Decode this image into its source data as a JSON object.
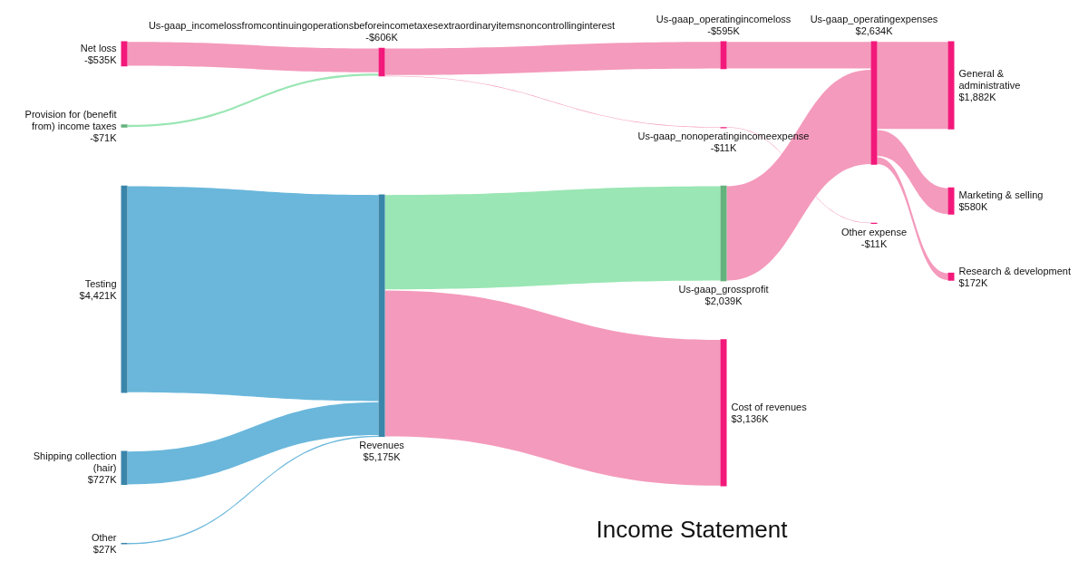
{
  "chart_data": {
    "type": "other",
    "title": "Income Statement",
    "categories": [
      "Net loss",
      "Provision for (benefit from) income taxes",
      "Testing",
      "Shipping collection (hair)",
      "Other",
      "Us-gaap_incomelossfromcontinuingoperationsbeforeincometaxesextraordinaryitemsnoncontrollinginterest",
      "Revenues",
      "Us-gaap_operatingincomeloss",
      "Us-gaap_nonoperatingincomeexpense",
      "Us-gaap_grossprofit",
      "Cost of revenues",
      "Us-gaap_operatingexpenses",
      "Other expense",
      "General & administrative",
      "Marketing & selling",
      "Research & development"
    ],
    "values": [
      -535,
      -71,
      4421,
      727,
      27,
      -606,
      5175,
      -595,
      -11,
      2039,
      3136,
      2634,
      -11,
      1882,
      580,
      172
    ],
    "value_labels": [
      "-$535K",
      "-$71K",
      "$4,421K",
      "$727K",
      "$27K",
      "-$606K",
      "$5,175K",
      "-$595K",
      "-$11K",
      "$2,039K",
      "$3,136K",
      "$2,634K",
      "-$11K",
      "$1,882K",
      "$580K",
      "$172K"
    ],
    "colors": [
      "#f2197a",
      "#64b27c",
      "#3a86aa",
      "#3a86aa",
      "#3a86aa",
      "#f2197a",
      "#3a86aa",
      "#f2197a",
      "#f2197a",
      "#64b27c",
      "#f2197a",
      "#f2197a",
      "#f2197a",
      "#f2197a",
      "#f2197a",
      "#f2197a"
    ],
    "series": [
      {
        "values": [
          null,
          null,
          null,
          null,
          null,
          null,
          null,
          null,
          null,
          null,
          null,
          null,
          null,
          null,
          null,
          null
        ],
        "colors": [
          null,
          null,
          null,
          null,
          null,
          "#f49abc",
          null,
          null,
          null,
          null,
          null,
          null,
          null,
          null,
          null,
          null
        ]
      },
      {
        "values": [
          null,
          null,
          null,
          null,
          null,
          null,
          null,
          null,
          null,
          null,
          null,
          null,
          null,
          null,
          null,
          null
        ],
        "colors": [
          null,
          null,
          null,
          null,
          null,
          "#9ae6b4",
          null,
          null,
          null,
          null,
          null,
          null,
          null,
          null,
          null,
          null
        ]
      },
      {
        "values": [
          null,
          null,
          null,
          null,
          null,
          null,
          null,
          null,
          null,
          null,
          null,
          null,
          null,
          null,
          null,
          null
        ],
        "colors": [
          null,
          null,
          null,
          null,
          null,
          null,
          "#6ab7db",
          null,
          null,
          null,
          null,
          null,
          null,
          null,
          null,
          null
        ]
      },
      {
        "values": [
          null,
          null,
          null,
          null,
          null,
          null,
          null,
          null,
          null,
          null,
          null,
          null,
          null,
          null,
          null,
          null
        ],
        "colors": [
          null,
          null,
          null,
          null,
          null,
          null,
          "#6ab7db",
          null,
          null,
          null,
          null,
          null,
          null,
          null,
          null,
          null
        ]
      },
      {
        "values": [
          null,
          null,
          null,
          null,
          null,
          null,
          null,
          null,
          null,
          null,
          null,
          null,
          null,
          null,
          null,
          null
        ],
        "colors": [
          null,
          null,
          null,
          null,
          null,
          null,
          "#6ab7db",
          null,
          null,
          null,
          null,
          null,
          null,
          null,
          null,
          null
        ]
      },
      {
        "values": [
          null,
          null,
          null,
          null,
          null,
          null,
          null,
          null,
          null,
          null,
          null,
          null,
          null,
          null,
          null,
          null
        ],
        "colors": [
          null,
          null,
          null,
          null,
          null,
          null,
          null,
          "#f49abc",
          "#f49abc",
          null,
          null,
          null,
          null,
          null,
          null,
          null
        ]
      },
      {
        "values": [
          null,
          null,
          null,
          null,
          null,
          null,
          null,
          null,
          null,
          null,
          null,
          null,
          null,
          null,
          null,
          null
        ],
        "colors": [
          null,
          null,
          null,
          null,
          null,
          null,
          null,
          null,
          null,
          "#9ae6b4",
          "#f49abc",
          null,
          null,
          null,
          null,
          null
        ]
      },
      {
        "values": [
          null,
          null,
          null,
          null,
          null,
          null,
          null,
          null,
          null,
          null,
          null,
          null,
          null,
          null,
          null,
          null
        ],
        "colors": [
          null,
          null,
          null,
          null,
          null,
          null,
          null,
          null,
          null,
          null,
          null,
          "#f49abc",
          null,
          null,
          null,
          null
        ]
      },
      {
        "values": [
          null,
          null,
          null,
          null,
          null,
          null,
          null,
          null,
          null,
          null,
          null,
          null,
          null,
          null,
          null,
          null
        ],
        "colors": [
          null,
          null,
          null,
          null,
          null,
          null,
          null,
          null,
          null,
          null,
          null,
          null,
          "#f49abc",
          null,
          null,
          null
        ]
      },
      {
        "values": [
          null,
          null,
          null,
          null,
          null,
          null,
          null,
          null,
          null,
          null,
          null,
          null,
          null,
          null,
          null,
          null
        ],
        "colors": [
          null,
          null,
          null,
          null,
          null,
          null,
          null,
          null,
          null,
          null,
          null,
          "#f49abc",
          null,
          null,
          null,
          null
        ]
      },
      {
        "values": [
          null,
          null,
          null,
          null,
          null,
          null,
          null,
          null,
          null,
          null,
          null,
          null,
          null,
          null,
          null,
          null
        ],
        "colors": [
          null,
          null,
          null,
          null,
          null,
          null,
          null,
          null,
          null,
          null,
          null,
          null,
          null,
          null,
          null,
          null
        ]
      },
      {
        "values": [
          null,
          null,
          null,
          null,
          null,
          null,
          null,
          null,
          null,
          null,
          null,
          null,
          null,
          null,
          null,
          null
        ],
        "colors": [
          null,
          null,
          null,
          null,
          null,
          null,
          null,
          null,
          null,
          null,
          null,
          null,
          null,
          "#f49abc",
          "#f49abc",
          "#f49abc"
        ]
      },
      {
        "values": [
          null,
          null,
          null,
          null,
          null,
          null,
          null,
          null,
          null,
          null,
          null,
          null,
          null,
          null,
          null,
          null
        ],
        "colors": [
          null,
          null,
          null,
          null,
          null,
          null,
          null,
          null,
          null,
          null,
          null,
          null,
          null,
          null,
          null,
          null
        ]
      },
      {
        "values": [
          null,
          null,
          null,
          null,
          null,
          null,
          null,
          null,
          null,
          null,
          null,
          null,
          null,
          null,
          null,
          null
        ],
        "colors": [
          null,
          null,
          null,
          null,
          null,
          null,
          null,
          null,
          null,
          null,
          null,
          null,
          null,
          null,
          null,
          null
        ]
      },
      {
        "values": [
          null,
          null,
          null,
          null,
          null,
          null,
          null,
          null,
          null,
          null,
          null,
          null,
          null,
          null,
          null,
          null
        ],
        "colors": [
          null,
          null,
          null,
          null,
          null,
          null,
          null,
          null,
          null,
          null,
          null,
          null,
          null,
          null,
          null,
          null
        ]
      },
      {
        "values": [
          null,
          null,
          null,
          null,
          null,
          null,
          null,
          null,
          null,
          null,
          null,
          null,
          null,
          null,
          null,
          null
        ],
        "colors": [
          null,
          null,
          null,
          null,
          null,
          null,
          null,
          null,
          null,
          null,
          null,
          null,
          null,
          null,
          null,
          null
        ]
      }
    ]
  }
}
